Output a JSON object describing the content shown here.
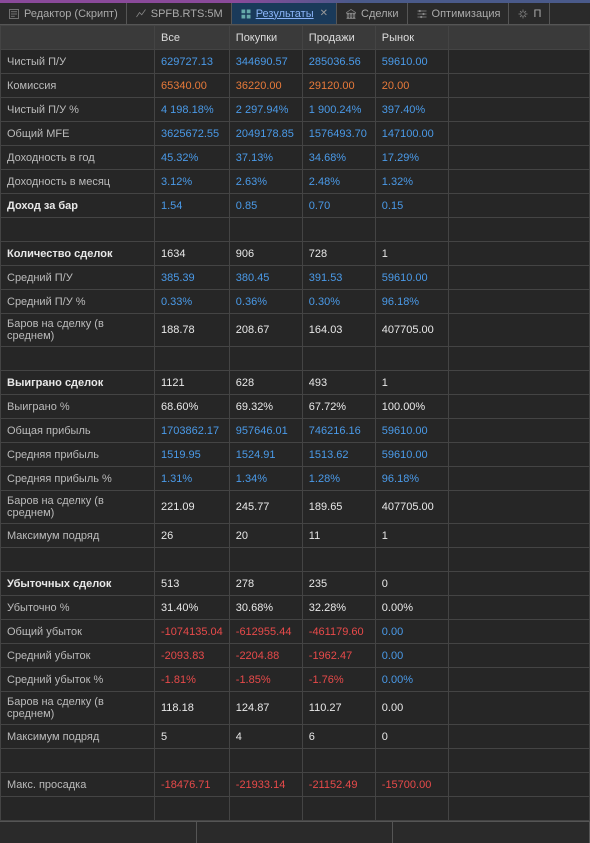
{
  "tabs": [
    {
      "label": "Редактор (Скрипт)",
      "icon": "script"
    },
    {
      "label": "SPFB.RTS:5M",
      "icon": "chart"
    },
    {
      "label": "Результаты",
      "icon": "grid",
      "active": true,
      "closable": true
    },
    {
      "label": "Сделки",
      "icon": "bank"
    },
    {
      "label": "Оптимизация",
      "icon": "sliders"
    },
    {
      "label": "П",
      "icon": "gear"
    }
  ],
  "headers": [
    "",
    "Все",
    "Покупки",
    "Продажи",
    "Рынок"
  ],
  "rows": [
    {
      "label": "Чистый П/У",
      "vals": [
        [
          "629727.13",
          "blue"
        ],
        [
          "344690.57",
          "blue"
        ],
        [
          "285036.56",
          "blue"
        ],
        [
          "59610.00",
          "blue"
        ]
      ]
    },
    {
      "label": "Комиссия",
      "vals": [
        [
          "65340.00",
          "orange"
        ],
        [
          "36220.00",
          "orange"
        ],
        [
          "29120.00",
          "orange"
        ],
        [
          "20.00",
          "orange"
        ]
      ]
    },
    {
      "label": "Чистый П/У %",
      "vals": [
        [
          "4 198.18%",
          "blue"
        ],
        [
          "2 297.94%",
          "blue"
        ],
        [
          "1 900.24%",
          "blue"
        ],
        [
          "397.40%",
          "blue"
        ]
      ]
    },
    {
      "label": "Общий MFE",
      "vals": [
        [
          "3625672.55",
          "blue"
        ],
        [
          "2049178.85",
          "blue"
        ],
        [
          "1576493.70",
          "blue"
        ],
        [
          "147100.00",
          "blue"
        ]
      ]
    },
    {
      "label": "Доходность в год",
      "vals": [
        [
          "45.32%",
          "blue"
        ],
        [
          "37.13%",
          "blue"
        ],
        [
          "34.68%",
          "blue"
        ],
        [
          "17.29%",
          "blue"
        ]
      ]
    },
    {
      "label": "Доходность в месяц",
      "vals": [
        [
          "3.12%",
          "blue"
        ],
        [
          "2.63%",
          "blue"
        ],
        [
          "2.48%",
          "blue"
        ],
        [
          "1.32%",
          "blue"
        ]
      ]
    },
    {
      "label": "Доход за бар",
      "section": true,
      "vals": [
        [
          "1.54",
          "blue"
        ],
        [
          "0.85",
          "blue"
        ],
        [
          "0.70",
          "blue"
        ],
        [
          "0.15",
          "blue"
        ]
      ]
    },
    {
      "empty": true
    },
    {
      "label": "Количество сделок",
      "section": true,
      "vals": [
        [
          "1634",
          "white"
        ],
        [
          "906",
          "white"
        ],
        [
          "728",
          "white"
        ],
        [
          "1",
          "white"
        ]
      ]
    },
    {
      "label": "Средний П/У",
      "vals": [
        [
          "385.39",
          "blue"
        ],
        [
          "380.45",
          "blue"
        ],
        [
          "391.53",
          "blue"
        ],
        [
          "59610.00",
          "blue"
        ]
      ]
    },
    {
      "label": "Средний П/У %",
      "vals": [
        [
          "0.33%",
          "blue"
        ],
        [
          "0.36%",
          "blue"
        ],
        [
          "0.30%",
          "blue"
        ],
        [
          "96.18%",
          "blue"
        ]
      ]
    },
    {
      "label": "Баров на сделку (в среднем)",
      "vals": [
        [
          "188.78",
          "white"
        ],
        [
          "208.67",
          "white"
        ],
        [
          "164.03",
          "white"
        ],
        [
          "407705.00",
          "white"
        ]
      ]
    },
    {
      "empty": true
    },
    {
      "label": "Выиграно сделок",
      "section": true,
      "vals": [
        [
          "1121",
          "white"
        ],
        [
          "628",
          "white"
        ],
        [
          "493",
          "white"
        ],
        [
          "1",
          "white"
        ]
      ]
    },
    {
      "label": "Выиграно %",
      "vals": [
        [
          "68.60%",
          "white"
        ],
        [
          "69.32%",
          "white"
        ],
        [
          "67.72%",
          "white"
        ],
        [
          "100.00%",
          "white"
        ]
      ]
    },
    {
      "label": "Общая прибыль",
      "vals": [
        [
          "1703862.17",
          "blue"
        ],
        [
          "957646.01",
          "blue"
        ],
        [
          "746216.16",
          "blue"
        ],
        [
          "59610.00",
          "blue"
        ]
      ]
    },
    {
      "label": "Средняя прибыль",
      "vals": [
        [
          "1519.95",
          "blue"
        ],
        [
          "1524.91",
          "blue"
        ],
        [
          "1513.62",
          "blue"
        ],
        [
          "59610.00",
          "blue"
        ]
      ]
    },
    {
      "label": "Средняя прибыль %",
      "vals": [
        [
          "1.31%",
          "blue"
        ],
        [
          "1.34%",
          "blue"
        ],
        [
          "1.28%",
          "blue"
        ],
        [
          "96.18%",
          "blue"
        ]
      ]
    },
    {
      "label": "Баров на сделку (в среднем)",
      "vals": [
        [
          "221.09",
          "white"
        ],
        [
          "245.77",
          "white"
        ],
        [
          "189.65",
          "white"
        ],
        [
          "407705.00",
          "white"
        ]
      ]
    },
    {
      "label": "Максимум подряд",
      "vals": [
        [
          "26",
          "white"
        ],
        [
          "20",
          "white"
        ],
        [
          "11",
          "white"
        ],
        [
          "1",
          "white"
        ]
      ]
    },
    {
      "empty": true
    },
    {
      "label": "Убыточных сделок",
      "section": true,
      "vals": [
        [
          "513",
          "white"
        ],
        [
          "278",
          "white"
        ],
        [
          "235",
          "white"
        ],
        [
          "0",
          "white"
        ]
      ]
    },
    {
      "label": "Убыточно %",
      "vals": [
        [
          "31.40%",
          "white"
        ],
        [
          "30.68%",
          "white"
        ],
        [
          "32.28%",
          "white"
        ],
        [
          "0.00%",
          "white"
        ]
      ]
    },
    {
      "label": "Общий убыток",
      "vals": [
        [
          "-1074135.04",
          "red"
        ],
        [
          "-612955.44",
          "red"
        ],
        [
          "-461179.60",
          "red"
        ],
        [
          "0.00",
          "blue"
        ]
      ]
    },
    {
      "label": "Средний убыток",
      "vals": [
        [
          "-2093.83",
          "red"
        ],
        [
          "-2204.88",
          "red"
        ],
        [
          "-1962.47",
          "red"
        ],
        [
          "0.00",
          "blue"
        ]
      ]
    },
    {
      "label": "Средний убыток %",
      "vals": [
        [
          "-1.81%",
          "red"
        ],
        [
          "-1.85%",
          "red"
        ],
        [
          "-1.76%",
          "red"
        ],
        [
          "0.00%",
          "blue"
        ]
      ]
    },
    {
      "label": "Баров на сделку (в среднем)",
      "vals": [
        [
          "118.18",
          "white"
        ],
        [
          "124.87",
          "white"
        ],
        [
          "110.27",
          "white"
        ],
        [
          "0.00",
          "white"
        ]
      ]
    },
    {
      "label": "Максимум подряд",
      "vals": [
        [
          "5",
          "white"
        ],
        [
          "4",
          "white"
        ],
        [
          "6",
          "white"
        ],
        [
          "0",
          "white"
        ]
      ]
    },
    {
      "empty": true
    },
    {
      "label": "Макс. просадка",
      "vals": [
        [
          "-18476.71",
          "red"
        ],
        [
          "-21933.14",
          "red"
        ],
        [
          "-21152.49",
          "red"
        ],
        [
          "-15700.00",
          "red"
        ]
      ]
    },
    {
      "empty": true
    }
  ]
}
